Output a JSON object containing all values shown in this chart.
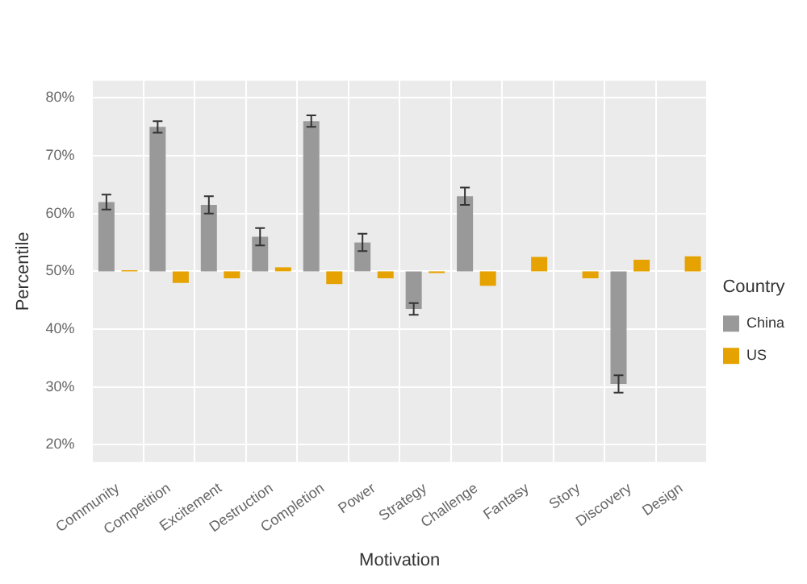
{
  "chart_data": {
    "type": "bar",
    "xlabel": "Motivation",
    "ylabel": "Percentile",
    "legend_title": "Country",
    "legend": "right",
    "grid": true,
    "categories": [
      "Community",
      "Competition",
      "Excitement",
      "Destruction",
      "Completion",
      "Power",
      "Strategy",
      "Challenge",
      "Fantasy",
      "Story",
      "Discovery",
      "Design"
    ],
    "series": [
      {
        "name": "China",
        "color": "#999999",
        "base": [
          50,
          50,
          50,
          50,
          50,
          50,
          50,
          50,
          null,
          null,
          50,
          null
        ],
        "values": [
          12,
          25,
          11.5,
          6,
          26,
          5,
          -6.5,
          13,
          null,
          null,
          -19.5,
          null
        ],
        "errors": [
          1.3,
          1,
          1.5,
          1.5,
          1,
          1.5,
          1,
          1.5,
          null,
          null,
          1.5,
          null
        ]
      },
      {
        "name": "US",
        "color": "#e6a200",
        "base": [
          50,
          50,
          50,
          50,
          50,
          50,
          50,
          50,
          50,
          50,
          50,
          50
        ],
        "values": [
          0.2,
          -2,
          -1.2,
          0.7,
          -2.2,
          -1.2,
          -0.3,
          -2.5,
          2.5,
          -1.2,
          2,
          2.6
        ]
      }
    ],
    "ylim": [
      17,
      83
    ],
    "yticks": [
      {
        "value": 20,
        "label": "20%"
      },
      {
        "value": 30,
        "label": "30%"
      },
      {
        "value": 40,
        "label": "40%"
      },
      {
        "value": 50,
        "label": "50%"
      },
      {
        "value": 60,
        "label": "60%"
      },
      {
        "value": 70,
        "label": "70%"
      },
      {
        "value": 80,
        "label": "80%"
      }
    ]
  }
}
